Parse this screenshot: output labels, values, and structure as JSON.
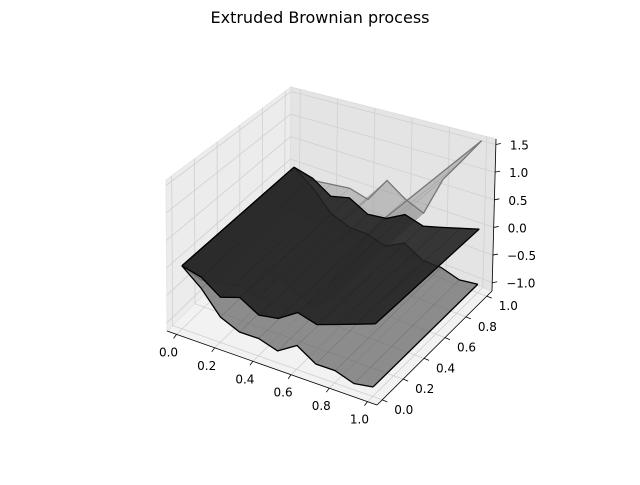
{
  "chart_data": {
    "type": "surface3d",
    "title": "Extruded Brownian process",
    "xlabel": "",
    "ylabel": "",
    "zlabel": "",
    "xlim": [
      -0.05,
      1.05
    ],
    "ylim": [
      -0.05,
      1.05
    ],
    "zlim": [
      -1.15,
      1.6
    ],
    "x_ticks": [
      "0.0",
      "0.2",
      "0.4",
      "0.6",
      "0.8",
      "1.0"
    ],
    "y_ticks": [
      "0.0",
      "0.2",
      "0.4",
      "0.6",
      "0.8",
      "1.0"
    ],
    "z_ticks": [
      "−1.0",
      "−0.5",
      "0.0",
      "0.5",
      "1.0",
      "1.5"
    ],
    "grid": true,
    "series": [
      {
        "role": "light-surface",
        "color": "#9a9a9a",
        "x": [
          0,
          0.1,
          0.2,
          0.3,
          0.4,
          0.5,
          0.6,
          0.7,
          0.8,
          0.9,
          1.0
        ],
        "z": [
          0,
          -0.15,
          -0.1,
          -0.05,
          -0.15,
          0.35,
          0.1,
          -0.05,
          0.7,
          1.15,
          1.6
        ]
      },
      {
        "role": "mid-surface",
        "color": "#6a6a6a",
        "x": [
          0,
          0.1,
          0.2,
          0.3,
          0.4,
          0.5,
          0.6,
          0.7,
          0.8,
          0.9,
          1.0
        ],
        "z": [
          0,
          -0.3,
          -0.7,
          -0.85,
          -0.85,
          -0.95,
          -0.75,
          -0.95,
          -0.95,
          -1.05,
          -1.0
        ]
      },
      {
        "role": "dark-surface",
        "color": "#222222",
        "x": [
          0,
          0.1,
          0.2,
          0.3,
          0.4,
          0.5,
          0.6,
          0.7,
          0.8,
          0.9,
          1.0
        ],
        "z": [
          0,
          -0.1,
          -0.35,
          -0.25,
          -0.45,
          -0.4,
          -0.2,
          -0.3,
          -0.2,
          -0.1,
          0.0
        ]
      }
    ]
  }
}
